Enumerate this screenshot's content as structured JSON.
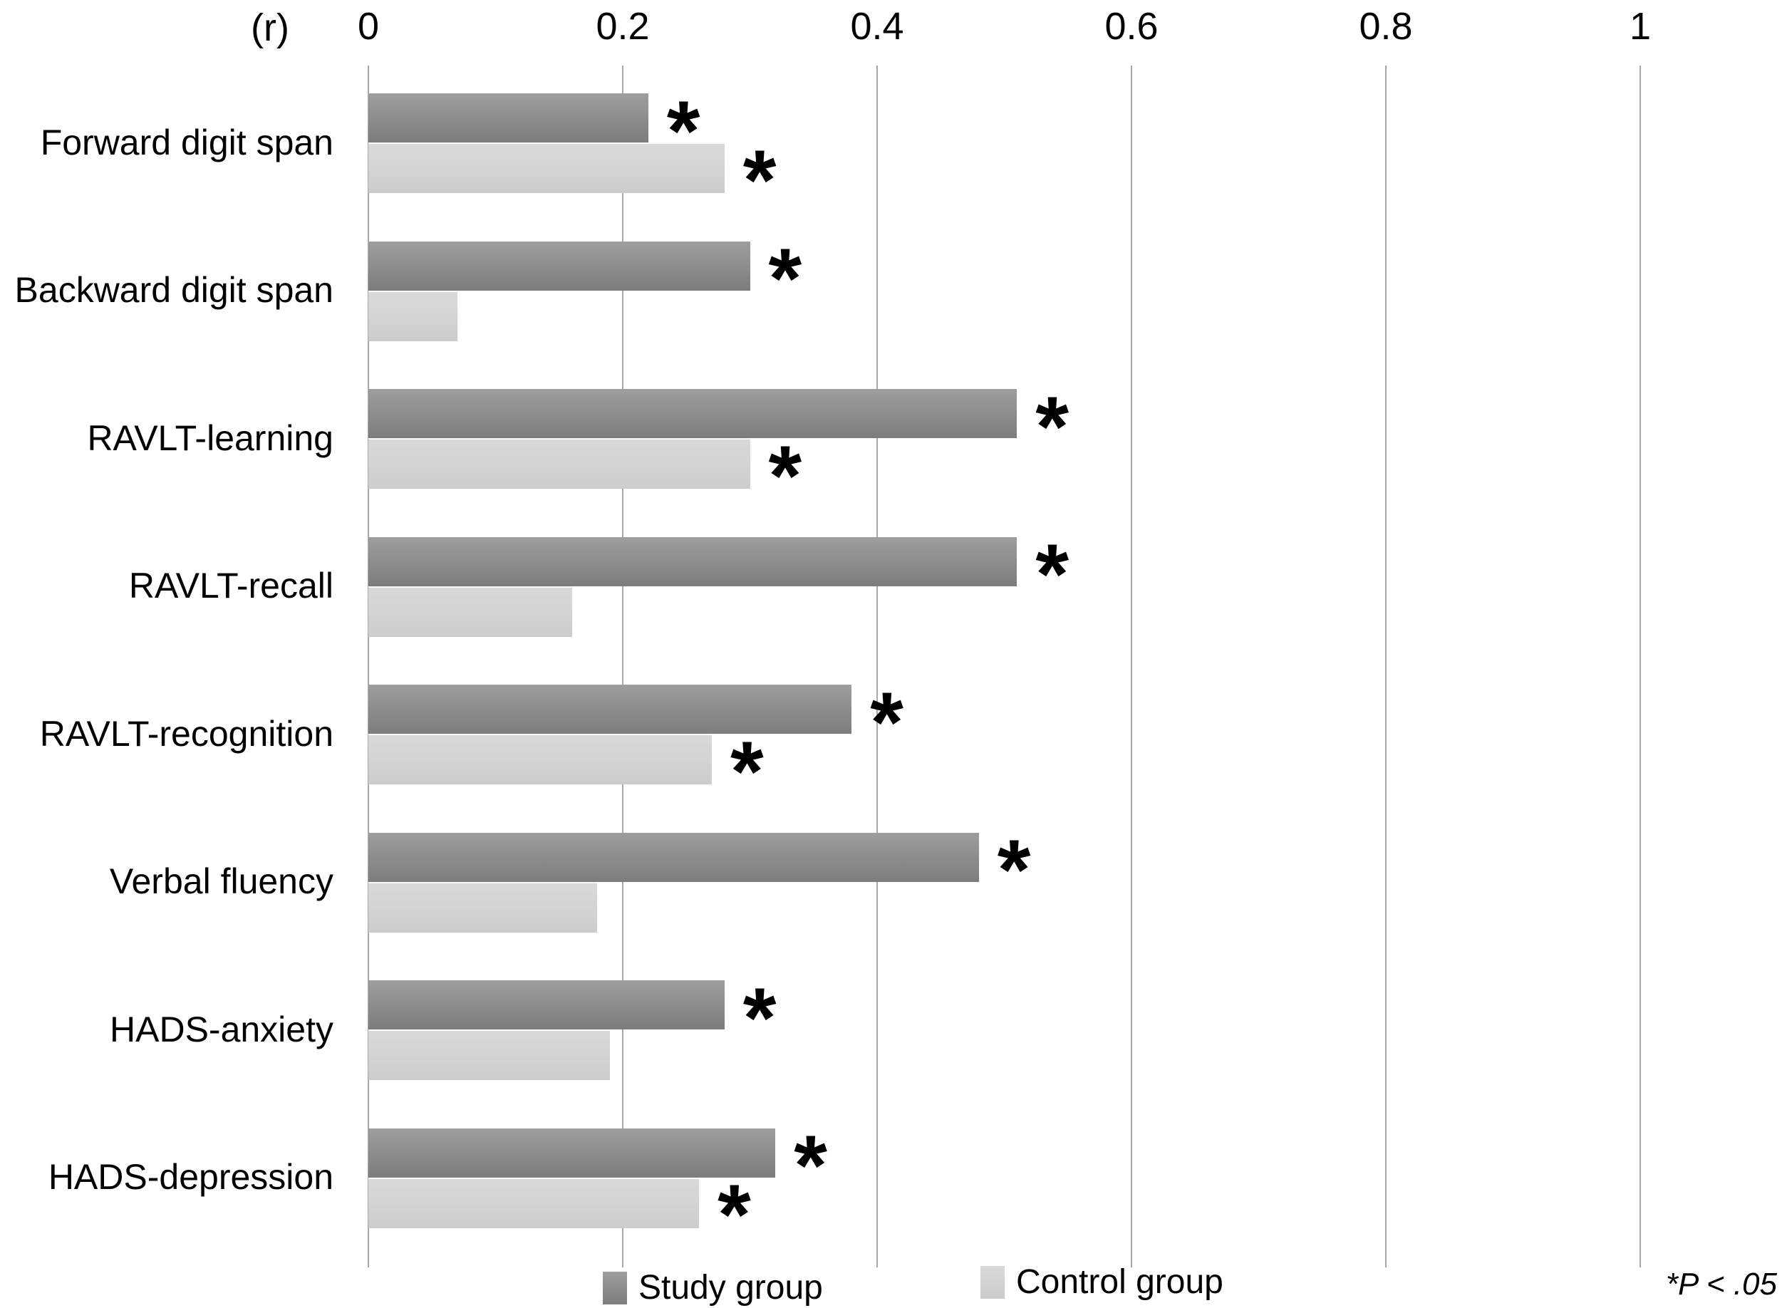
{
  "axis_header": "(r)",
  "footnote": "*P < .05",
  "legend": {
    "study_label": "Study group",
    "control_label": "Control group"
  },
  "chart_data": {
    "type": "bar",
    "orientation": "horizontal",
    "title": "",
    "xlabel": "(r)",
    "ylabel": "",
    "xlim": [
      0,
      1
    ],
    "xticks": [
      0,
      0.2,
      0.4,
      0.6,
      0.8,
      1
    ],
    "xtick_labels": [
      "0",
      "0.2",
      "0.4",
      "0.6",
      "0.8",
      "1"
    ],
    "grid": true,
    "legend_position": "bottom",
    "significance_marker": "*",
    "significance_note": "*P < .05",
    "categories": [
      "Forward digit span",
      "Backward digit span",
      "RAVLT-learning",
      "RAVLT-recall",
      "RAVLT-recognition",
      "Verbal fluency",
      "HADS-anxiety",
      "HADS-depression"
    ],
    "series": [
      {
        "name": "Study group",
        "values": [
          0.22,
          0.3,
          0.51,
          0.51,
          0.38,
          0.48,
          0.28,
          0.32
        ],
        "significant": [
          true,
          true,
          true,
          true,
          true,
          true,
          true,
          true
        ]
      },
      {
        "name": "Control group",
        "values": [
          0.28,
          0.07,
          0.3,
          0.16,
          0.27,
          0.18,
          0.19,
          0.26
        ],
        "significant": [
          true,
          false,
          true,
          false,
          true,
          false,
          false,
          true
        ]
      }
    ],
    "colors": {
      "study_bar_top": "#9e9e9e",
      "study_bar_bottom": "#7c7c7c",
      "control_bar_top": "#d9d9d9",
      "control_bar_bottom": "#cccccc",
      "gridline": "#a8a8a8",
      "text": "#000000"
    }
  }
}
